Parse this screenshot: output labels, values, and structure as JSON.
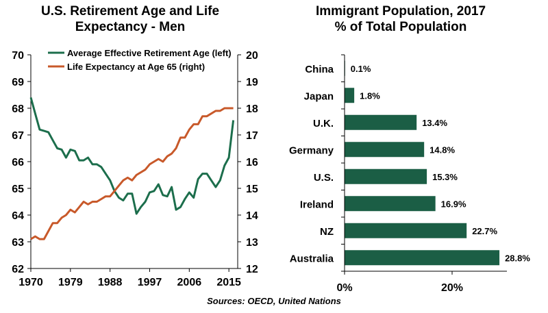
{
  "colors": {
    "retirement": "#1c6e4c",
    "life_expectancy": "#c8592a",
    "bar": "#1b5e45",
    "axis": "#000000"
  },
  "source": "Sources: OECD, United Nations",
  "chart_data": [
    {
      "type": "line",
      "title": "U.S. Retirement Age and Life Expectancy - Men",
      "title_lines": [
        "U.S. Retirement Age and Life",
        "Expectancy - Men"
      ],
      "xlim": [
        1970,
        2017
      ],
      "x_ticks": [
        "1970",
        "1979",
        "1988",
        "1997",
        "2006",
        "2015"
      ],
      "ylim_left": [
        62,
        70
      ],
      "y_ticks_left": [
        "70",
        "69",
        "68",
        "67",
        "66",
        "65",
        "64",
        "63",
        "62"
      ],
      "ylim_right": [
        12,
        20
      ],
      "y_ticks_right": [
        "20",
        "19",
        "18",
        "17",
        "16",
        "15",
        "14",
        "13",
        "12"
      ],
      "legend_position": "top",
      "grid": false,
      "series": [
        {
          "name": "Average Effective Retirement Age (left)",
          "axis": "left",
          "x": [
            1970,
            1971,
            1972,
            1973,
            1974,
            1975,
            1976,
            1977,
            1978,
            1979,
            1980,
            1981,
            1982,
            1983,
            1984,
            1985,
            1986,
            1987,
            1988,
            1989,
            1990,
            1991,
            1992,
            1993,
            1994,
            1995,
            1996,
            1997,
            1998,
            1999,
            2000,
            2001,
            2002,
            2003,
            2004,
            2005,
            2006,
            2007,
            2008,
            2009,
            2010,
            2011,
            2012,
            2013,
            2014,
            2015,
            2016
          ],
          "y": [
            68.4,
            67.8,
            67.2,
            67.15,
            67.1,
            66.8,
            66.5,
            66.45,
            66.15,
            66.45,
            66.4,
            66.05,
            66.05,
            66.15,
            65.9,
            65.9,
            65.8,
            65.55,
            65.3,
            64.9,
            64.65,
            64.55,
            64.8,
            64.8,
            64.05,
            64.3,
            64.5,
            64.85,
            64.9,
            65.15,
            64.75,
            64.7,
            65.05,
            64.2,
            64.3,
            64.6,
            64.85,
            64.65,
            65.35,
            65.55,
            65.55,
            65.3,
            65.05,
            65.3,
            65.85,
            66.15,
            67.55
          ]
        },
        {
          "name": "Life Expectancy at Age 65 (right)",
          "axis": "right",
          "x": [
            1970,
            1971,
            1972,
            1973,
            1974,
            1975,
            1976,
            1977,
            1978,
            1979,
            1980,
            1981,
            1982,
            1983,
            1984,
            1985,
            1986,
            1987,
            1988,
            1989,
            1990,
            1991,
            1992,
            1993,
            1994,
            1995,
            1996,
            1997,
            1998,
            1999,
            2000,
            2001,
            2002,
            2003,
            2004,
            2005,
            2006,
            2007,
            2008,
            2009,
            2010,
            2011,
            2012,
            2013,
            2014,
            2015,
            2016
          ],
          "y": [
            13.1,
            13.2,
            13.1,
            13.1,
            13.4,
            13.7,
            13.7,
            13.9,
            14.0,
            14.2,
            14.1,
            14.3,
            14.5,
            14.4,
            14.5,
            14.5,
            14.6,
            14.7,
            14.7,
            14.9,
            15.1,
            15.3,
            15.4,
            15.3,
            15.5,
            15.6,
            15.7,
            15.9,
            16.0,
            16.1,
            16.0,
            16.2,
            16.3,
            16.5,
            16.9,
            16.9,
            17.2,
            17.4,
            17.4,
            17.7,
            17.7,
            17.8,
            17.9,
            17.9,
            18.0,
            18.0,
            18.0
          ]
        }
      ]
    },
    {
      "type": "bar",
      "orientation": "horizontal",
      "title": "Immigrant Population, 2017 % of Total Population",
      "title_lines": [
        "Immigrant Population, 2017",
        "% of Total Population"
      ],
      "categories": [
        "China",
        "Japan",
        "U.K.",
        "Germany",
        "U.S.",
        "Ireland",
        "NZ",
        "Australia"
      ],
      "values": [
        0.1,
        1.8,
        13.4,
        14.8,
        15.3,
        16.9,
        22.7,
        28.8
      ],
      "value_labels": [
        "0.1%",
        "1.8%",
        "13.4%",
        "14.8%",
        "15.3%",
        "16.9%",
        "22.7%",
        "28.8%"
      ],
      "xlim": [
        0,
        30
      ],
      "x_ticks": [
        {
          "value": 0,
          "label": "0%"
        },
        {
          "value": 20,
          "label": "20%"
        }
      ],
      "grid": false
    }
  ]
}
